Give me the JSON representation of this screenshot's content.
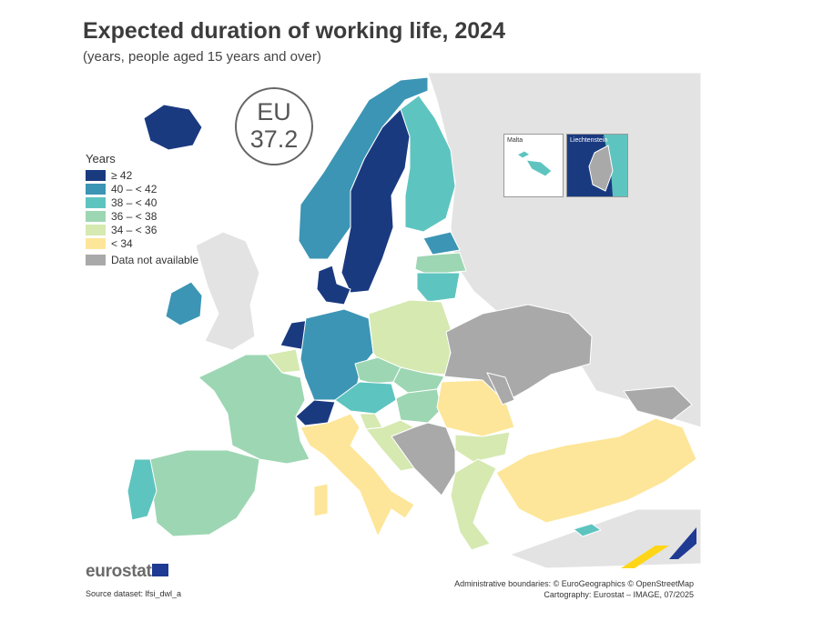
{
  "title": "Expected duration of working life, 2024",
  "subtitle": "(years, people aged 15 years and over)",
  "eu_value": {
    "label": "EU",
    "value": "37.2"
  },
  "legend": {
    "title": "Years",
    "classes": [
      {
        "label": "≥ 42",
        "color": "#1a3a80"
      },
      {
        "label": "40 – < 42",
        "color": "#3c95b4"
      },
      {
        "label": "38 – < 40",
        "color": "#5ec4c0"
      },
      {
        "label": "36 – < 38",
        "color": "#9dd6b3"
      },
      {
        "label": "34 – < 36",
        "color": "#d5e9b1"
      },
      {
        "label": "< 34",
        "color": "#fde699"
      }
    ],
    "na": {
      "label": "Data not available",
      "color": "#a9a9a9"
    }
  },
  "insets": {
    "malta": "Malta",
    "liechtenstein": "Liechtenstein"
  },
  "branding": {
    "logo_text": "eurostat"
  },
  "source": "Source dataset: lfsi_dwl_a",
  "credits": {
    "line1": "Administrative boundaries: © EuroGeographics © OpenStreetMap",
    "line2": "Cartography: Eurostat – IMAGE, 07/2025"
  },
  "colors": {
    "background_land": "#e3e3e3",
    "sea": "#ffffff",
    "border": "#ffffff"
  }
}
